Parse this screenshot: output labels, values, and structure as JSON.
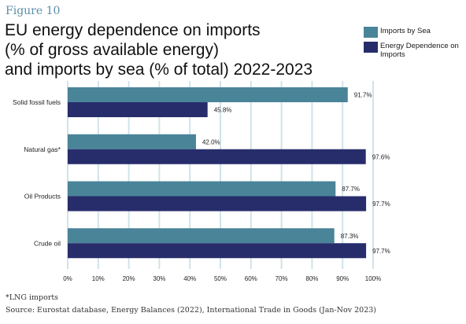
{
  "figure_label": "Figure 10",
  "title_lines": [
    "EU energy dependence on imports",
    "(% of gross available energy)",
    "and imports by sea (% of total) 2022-2023"
  ],
  "footnote": "*LNG imports",
  "source": "Source: Eurostat database, Energy Balances (2022), International Trade in Goods (Jan-Nov 2023)",
  "colors": {
    "sea": "#4a8499",
    "dependence": "#272d6b",
    "grid": "#cfe3ea"
  },
  "chart_data": {
    "type": "bar",
    "orientation": "horizontal",
    "title": "EU energy dependence on imports (% of gross available energy) and imports by sea (% of total) 2022-2023",
    "categories": [
      "Solid fossil fuels",
      "Natural gas*",
      "Oil Products",
      "Crude oil"
    ],
    "series": [
      {
        "name": "Imports by Sea",
        "values": [
          91.7,
          42.0,
          87.7,
          87.3
        ],
        "labels": [
          "91.7%",
          "42.0%",
          "87.7%",
          "87.3%"
        ]
      },
      {
        "name": "Energy Dependence on Imports",
        "values": [
          45.8,
          97.6,
          97.7,
          97.7
        ],
        "labels": [
          "45.8%",
          "97.6%",
          "97.7%",
          "97.7%"
        ]
      }
    ],
    "xlim": [
      0,
      100
    ],
    "xticks": [
      "0%",
      "10%",
      "20%",
      "30%",
      "40%",
      "50%",
      "60%",
      "70%",
      "80%",
      "90%",
      "100%"
    ],
    "grid": true,
    "legend_position": "top-right"
  }
}
